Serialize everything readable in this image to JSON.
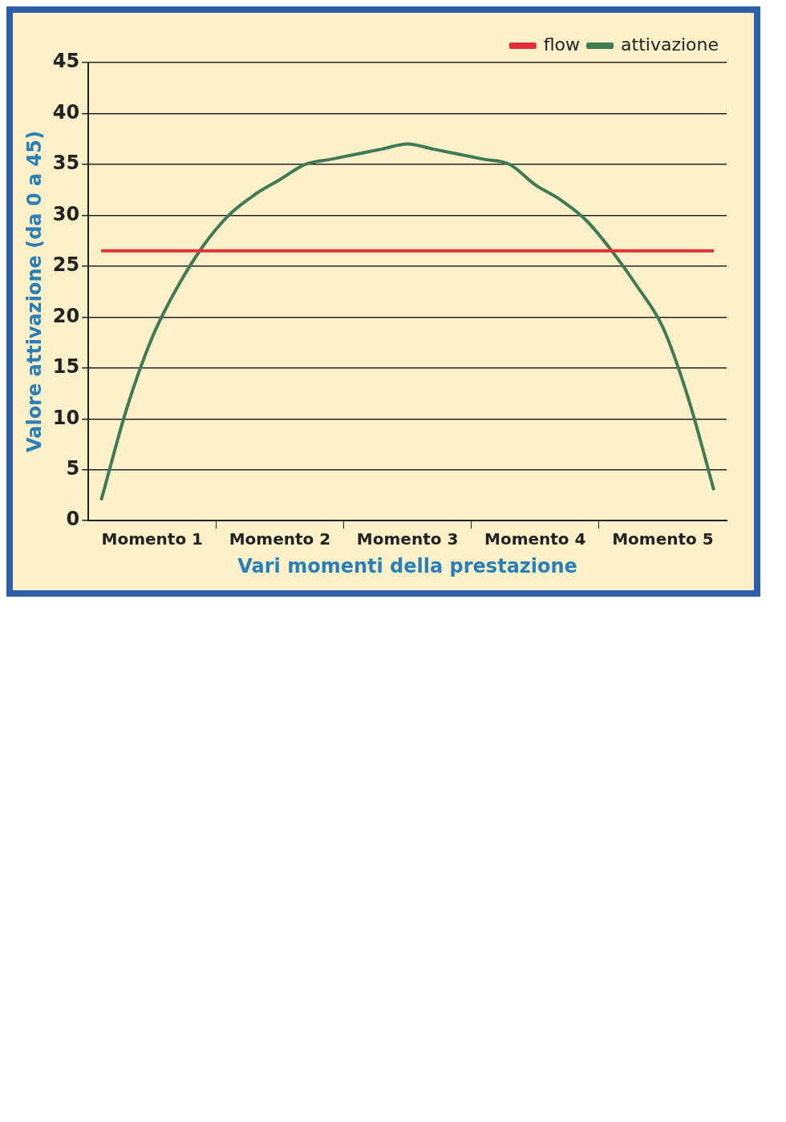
{
  "chart_data": {
    "type": "line",
    "xlabel": "Vari momenti della prestazione",
    "ylabel": "Valore attivazione (da 0 a 45)",
    "categories": [
      null,
      null,
      "Momento 1",
      null,
      null,
      null,
      null,
      "Momento 2",
      null,
      null,
      null,
      null,
      "Momento 3",
      null,
      null,
      null,
      null,
      "Momento 4",
      null,
      null,
      null,
      null,
      "Momento 5",
      null,
      null
    ],
    "ylim": [
      0,
      45
    ],
    "yticks": [
      0,
      5,
      10,
      15,
      20,
      25,
      30,
      35,
      40,
      45
    ],
    "grid": "y",
    "legend": "top right",
    "marker": "none",
    "line_style": "solid",
    "series": [
      {
        "name": "flow",
        "color": "#e0303a",
        "values": [
          26.5,
          26.5,
          26.5,
          26.5,
          26.5,
          26.5,
          26.5,
          26.5,
          26.5,
          26.5,
          26.5,
          26.5,
          26.5,
          26.5,
          26.5,
          26.5,
          26.5,
          26.5,
          26.5,
          26.5,
          26.5,
          26.5,
          26.5,
          26.5,
          26.5
        ]
      },
      {
        "name": "attivazione",
        "color": "#3f7a55",
        "values": [
          2,
          11,
          18,
          23,
          27,
          30,
          32,
          33.5,
          35,
          35.5,
          36,
          36.5,
          37,
          36.5,
          36,
          35.5,
          35,
          33,
          31.5,
          29.5,
          26.5,
          23,
          19,
          12,
          3
        ]
      }
    ]
  }
}
